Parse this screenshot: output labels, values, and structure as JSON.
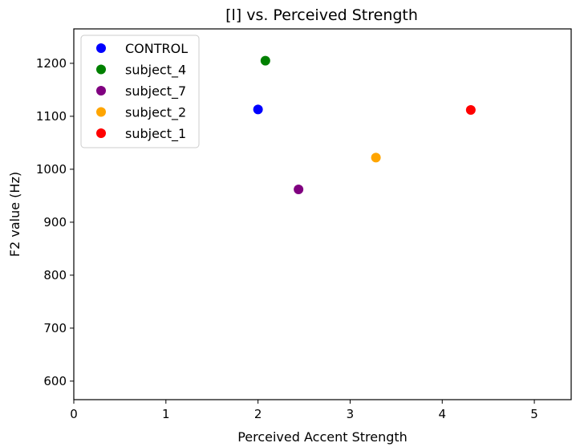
{
  "chart_data": {
    "type": "scatter",
    "title": "[l] vs. Perceived Strength",
    "xlabel": "Perceived Accent Strength",
    "ylabel": "F2 value (Hz)",
    "xlim": [
      0,
      5.4
    ],
    "ylim": [
      565,
      1265
    ],
    "xticks": [
      0,
      1,
      2,
      3,
      4,
      5
    ],
    "yticks": [
      600,
      700,
      800,
      900,
      1000,
      1100,
      1200
    ],
    "grid": false,
    "legend_position": "upper-left",
    "series": [
      {
        "name": "CONTROL",
        "color": "#0000ff",
        "points": [
          {
            "x": 2.0,
            "y": 1113
          }
        ]
      },
      {
        "name": "subject_4",
        "color": "#008000",
        "points": [
          {
            "x": 2.08,
            "y": 1205
          }
        ]
      },
      {
        "name": "subject_7",
        "color": "#800080",
        "points": [
          {
            "x": 2.44,
            "y": 962
          }
        ]
      },
      {
        "name": "subject_2",
        "color": "#ffa500",
        "points": [
          {
            "x": 3.28,
            "y": 1022
          }
        ]
      },
      {
        "name": "subject_1",
        "color": "#ff0000",
        "points": [
          {
            "x": 4.31,
            "y": 1112
          }
        ]
      }
    ]
  }
}
